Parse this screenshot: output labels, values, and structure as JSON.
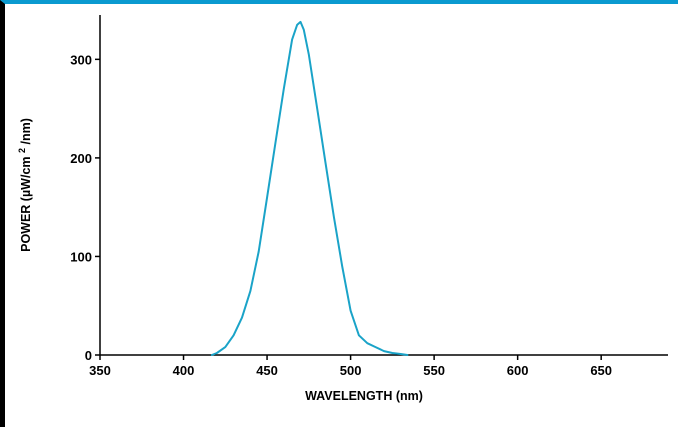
{
  "chart_data": {
    "type": "line",
    "title": "",
    "xlabel": "WAVELENGTH (nm)",
    "ylabel_parts": {
      "main": "POWER",
      "unit_prefix": "(µW/cm",
      "unit_sup": "2",
      "unit_suffix": "/nm)"
    },
    "xlim": [
      350,
      690
    ],
    "ylim": [
      0,
      345
    ],
    "xticks": [
      350,
      400,
      450,
      500,
      550,
      600,
      650
    ],
    "yticks": [
      0,
      100,
      200,
      300
    ],
    "grid": false,
    "legend": "none",
    "series": [
      {
        "color": "#1aa3c8",
        "x": [
          417,
          420,
          425,
          430,
          435,
          440,
          445,
          450,
          455,
          460,
          465,
          468,
          470,
          472,
          475,
          480,
          485,
          490,
          495,
          500,
          505,
          510,
          515,
          520,
          525,
          530,
          534
        ],
        "y": [
          0,
          2,
          8,
          20,
          38,
          65,
          105,
          160,
          215,
          270,
          320,
          335,
          338,
          330,
          305,
          250,
          195,
          140,
          90,
          45,
          20,
          12,
          8,
          4,
          2,
          1,
          0
        ]
      }
    ]
  }
}
